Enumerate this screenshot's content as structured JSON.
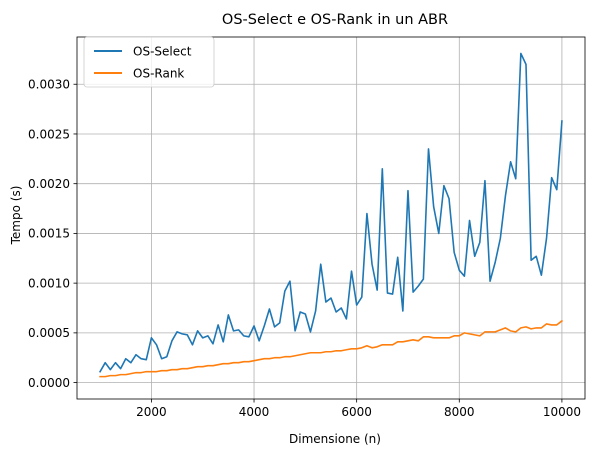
{
  "chart_data": {
    "type": "line",
    "title": "OS-Select e OS-Rank in un ABR",
    "xlabel": "Dimensione (n)",
    "ylabel": "Tempo (s)",
    "xlim": [
      550,
      10450
    ],
    "ylim": [
      -0.000165,
      0.003475
    ],
    "xticks": [
      2000,
      4000,
      6000,
      8000,
      10000
    ],
    "xtick_labels": [
      "2000",
      "4000",
      "6000",
      "8000",
      "10000"
    ],
    "yticks": [
      0,
      0.0005,
      0.001,
      0.0015,
      0.002,
      0.0025,
      0.003
    ],
    "ytick_labels": [
      "0.0000",
      "0.0005",
      "0.0010",
      "0.0015",
      "0.0020",
      "0.0025",
      "0.0030"
    ],
    "grid": true,
    "legend_position": "top-left",
    "x": [
      1000,
      1100,
      1200,
      1300,
      1400,
      1500,
      1600,
      1700,
      1800,
      1900,
      2000,
      2100,
      2200,
      2300,
      2400,
      2500,
      2600,
      2700,
      2800,
      2900,
      3000,
      3100,
      3200,
      3300,
      3400,
      3500,
      3600,
      3700,
      3800,
      3900,
      4000,
      4100,
      4200,
      4300,
      4400,
      4500,
      4600,
      4700,
      4800,
      4900,
      5000,
      5100,
      5200,
      5300,
      5400,
      5500,
      5600,
      5700,
      5800,
      5900,
      6000,
      6100,
      6200,
      6300,
      6400,
      6500,
      6600,
      6700,
      6800,
      6900,
      7000,
      7100,
      7200,
      7300,
      7400,
      7500,
      7600,
      7700,
      7800,
      7900,
      8000,
      8100,
      8200,
      8300,
      8400,
      8500,
      8600,
      8700,
      8800,
      8900,
      9000,
      9100,
      9200,
      9300,
      9400,
      9500,
      9600,
      9700,
      9800,
      9900,
      10000
    ],
    "series": [
      {
        "name": "OS-Select",
        "color": "#1f77b4",
        "values": [
          0.00011,
          0.0002,
          0.00013,
          0.0002,
          0.00014,
          0.00024,
          0.0002,
          0.00028,
          0.00024,
          0.00023,
          0.00045,
          0.00038,
          0.00024,
          0.00026,
          0.00042,
          0.00051,
          0.00049,
          0.00048,
          0.00038,
          0.00052,
          0.00045,
          0.00047,
          0.00039,
          0.00058,
          0.00041,
          0.00068,
          0.00052,
          0.00053,
          0.00047,
          0.00046,
          0.00057,
          0.00042,
          0.00057,
          0.00074,
          0.00056,
          0.0006,
          0.00092,
          0.00102,
          0.00052,
          0.00071,
          0.00069,
          0.00051,
          0.00072,
          0.00119,
          0.00081,
          0.00085,
          0.00071,
          0.00075,
          0.00064,
          0.00112,
          0.00078,
          0.00086,
          0.0017,
          0.00119,
          0.00093,
          0.00215,
          0.0009,
          0.00089,
          0.00126,
          0.00072,
          0.00193,
          0.00091,
          0.00097,
          0.00104,
          0.00235,
          0.00177,
          0.0015,
          0.00198,
          0.00185,
          0.00131,
          0.00113,
          0.00107,
          0.00163,
          0.00127,
          0.00141,
          0.00203,
          0.00102,
          0.00121,
          0.00145,
          0.00188,
          0.00222,
          0.00205,
          0.00331,
          0.0032,
          0.00123,
          0.00127,
          0.00108,
          0.00145,
          0.00206,
          0.00194,
          0.00263
        ]
      },
      {
        "name": "OS-Rank",
        "color": "#ff7f0e",
        "values": [
          6e-05,
          6e-05,
          7e-05,
          7e-05,
          8e-05,
          8e-05,
          9e-05,
          0.0001,
          0.0001,
          0.00011,
          0.00011,
          0.00011,
          0.00012,
          0.00012,
          0.00013,
          0.00013,
          0.00014,
          0.00014,
          0.00015,
          0.00016,
          0.00016,
          0.00017,
          0.00017,
          0.00018,
          0.00019,
          0.00019,
          0.0002,
          0.0002,
          0.00021,
          0.00021,
          0.00022,
          0.00023,
          0.00024,
          0.00024,
          0.00025,
          0.00025,
          0.00026,
          0.00026,
          0.00027,
          0.00028,
          0.00029,
          0.0003,
          0.0003,
          0.0003,
          0.00031,
          0.00031,
          0.00032,
          0.00032,
          0.00033,
          0.00034,
          0.00034,
          0.00035,
          0.00037,
          0.00035,
          0.00036,
          0.00038,
          0.00038,
          0.00038,
          0.00041,
          0.00041,
          0.00042,
          0.00043,
          0.00042,
          0.00046,
          0.00046,
          0.00045,
          0.00045,
          0.00045,
          0.00045,
          0.00047,
          0.00047,
          0.0005,
          0.00049,
          0.00048,
          0.00047,
          0.00051,
          0.00051,
          0.00051,
          0.00053,
          0.00055,
          0.00052,
          0.00051,
          0.00055,
          0.00056,
          0.00054,
          0.00055,
          0.00055,
          0.00059,
          0.00058,
          0.00058,
          0.00062
        ]
      }
    ]
  }
}
